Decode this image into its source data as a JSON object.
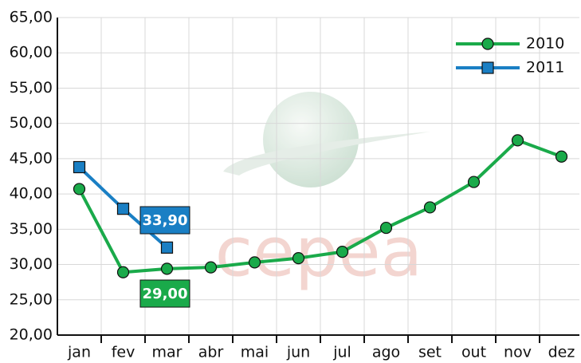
{
  "chart_data": {
    "type": "line",
    "categories": [
      "jan",
      "fev",
      "mar",
      "abr",
      "mai",
      "jun",
      "jul",
      "ago",
      "set",
      "out",
      "nov",
      "dez"
    ],
    "series": [
      {
        "name": "2010",
        "color": "#1aaa4a",
        "marker": "circle",
        "values": [
          40.7,
          28.9,
          29.4,
          29.6,
          30.3,
          30.9,
          31.8,
          35.2,
          38.1,
          41.7,
          47.6,
          45.3
        ]
      },
      {
        "name": "2011",
        "color": "#1a7fc4",
        "marker": "square",
        "values": [
          43.8,
          37.9,
          32.4,
          null,
          null,
          null,
          null,
          null,
          null,
          null,
          null,
          null
        ]
      }
    ],
    "ylim": [
      20,
      65
    ],
    "yticks": [
      {
        "value": 20,
        "label": "20,00"
      },
      {
        "value": 25,
        "label": "25,00"
      },
      {
        "value": 30,
        "label": "30,00"
      },
      {
        "value": 35,
        "label": "35,00"
      },
      {
        "value": 40,
        "label": "40,00"
      },
      {
        "value": 45,
        "label": "45,00"
      },
      {
        "value": 50,
        "label": "50,00"
      },
      {
        "value": 55,
        "label": "55,00"
      },
      {
        "value": 60,
        "label": "60,00"
      },
      {
        "value": 65,
        "label": "65,00"
      }
    ],
    "grid": true,
    "legend": "top-right",
    "annotations": [
      {
        "text": "33,90",
        "color": "#1a7fc4"
      },
      {
        "text": "29,00",
        "color": "#1aaa4a"
      }
    ],
    "watermark": "cepea"
  }
}
